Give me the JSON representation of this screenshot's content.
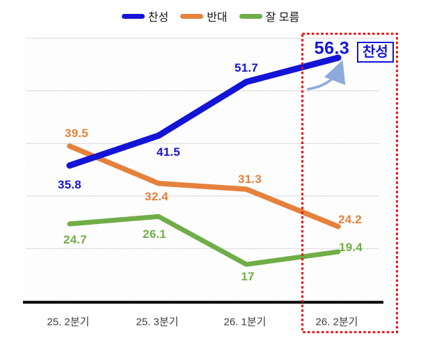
{
  "legend": {
    "items": [
      {
        "label": "찬성",
        "color": "#1414d6"
      },
      {
        "label": "반대",
        "color": "#e6813c"
      },
      {
        "label": "잘 모름",
        "color": "#70ad47"
      }
    ]
  },
  "chart_data": {
    "type": "line",
    "title": "",
    "categories": [
      "25. 2분기",
      "25. 3분기",
      "26. 1분기",
      "26. 2분기"
    ],
    "series": [
      {
        "name": "찬성",
        "color": "#1414d6",
        "values": [
          35.8,
          41.5,
          51.7,
          56.3
        ],
        "labels": [
          "35.8",
          "41.5",
          "51.7",
          "56.3"
        ]
      },
      {
        "name": "반대",
        "color": "#e6813c",
        "values": [
          39.5,
          32.4,
          31.3,
          24.2
        ],
        "labels": [
          "39.5",
          "32.4",
          "31.3",
          "24.2"
        ]
      },
      {
        "name": "잘 모름",
        "color": "#70ad47",
        "values": [
          24.7,
          26.1,
          17,
          19.4
        ],
        "labels": [
          "24.7",
          "26.1",
          "17",
          "19.4"
        ]
      }
    ],
    "ylim": [
      10,
      60
    ],
    "ytick_step": 10,
    "grid": true,
    "legend_position": "top",
    "highlight": {
      "category": "26. 2분기",
      "value_label": "56.3",
      "series_label": "찬성",
      "box_color": "#ee1212",
      "arrow_color": "#8ea9db"
    },
    "gridline_color": "#d9d9d9",
    "axis_color": "#000000"
  }
}
